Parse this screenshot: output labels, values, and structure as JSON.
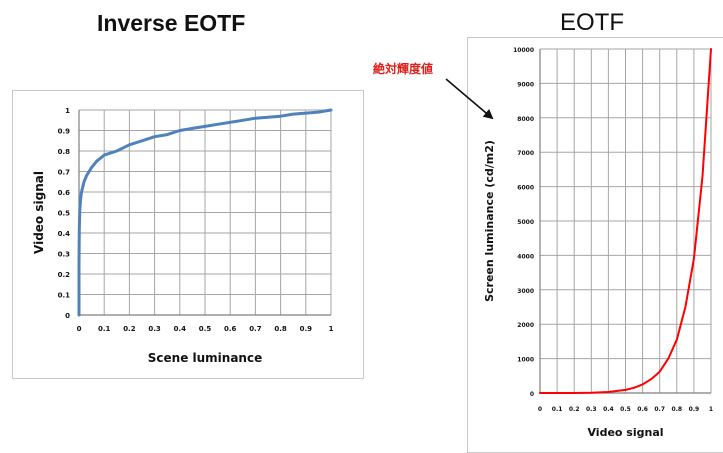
{
  "chart_data": [
    {
      "type": "line",
      "title": "Inverse EOTF",
      "xlabel": "Scene luminance",
      "ylabel": "Video signal",
      "xlim": [
        0,
        1
      ],
      "ylim": [
        0,
        1
      ],
      "grid": true,
      "x_ticks": [
        "0",
        "0.1",
        "0.2",
        "0.3",
        "0.4",
        "0.5",
        "0.6",
        "0.7",
        "0.8",
        "0.9",
        "1"
      ],
      "y_ticks": [
        "0",
        "0.1",
        "0.2",
        "0.3",
        "0.4",
        "0.5",
        "0.6",
        "0.7",
        "0.8",
        "0.9",
        "1"
      ],
      "series": [
        {
          "color": "#4f81bd",
          "x": [
            0,
            0.0001,
            0.001,
            0.003,
            0.006,
            0.01,
            0.02,
            0.03,
            0.05,
            0.07,
            0.1,
            0.15,
            0.2,
            0.25,
            0.3,
            0.35,
            0.4,
            0.45,
            0.5,
            0.55,
            0.6,
            0.65,
            0.7,
            0.75,
            0.8,
            0.85,
            0.9,
            0.95,
            1
          ],
          "y": [
            0,
            0.25,
            0.42,
            0.51,
            0.56,
            0.6,
            0.65,
            0.68,
            0.72,
            0.75,
            0.78,
            0.8,
            0.83,
            0.85,
            0.87,
            0.88,
            0.9,
            0.91,
            0.92,
            0.93,
            0.94,
            0.95,
            0.96,
            0.965,
            0.97,
            0.98,
            0.985,
            0.99,
            1
          ]
        }
      ]
    },
    {
      "type": "line",
      "title": "EOTF",
      "xlabel": "Video signal",
      "ylabel": "Screen luminance (cd/m2)",
      "xlim": [
        0,
        1
      ],
      "ylim": [
        0,
        10000
      ],
      "grid": true,
      "x_ticks": [
        "0",
        "0.1",
        "0.2",
        "0.3",
        "0.4",
        "0.5",
        "0.6",
        "0.7",
        "0.8",
        "0.9",
        "1"
      ],
      "y_ticks": [
        "0",
        "1000",
        "2000",
        "3000",
        "4000",
        "5000",
        "6000",
        "7000",
        "8000",
        "9000",
        "10000"
      ],
      "annotation": "絶対輝度値",
      "series": [
        {
          "color": "#ff0000",
          "x": [
            0,
            0.1,
            0.2,
            0.3,
            0.4,
            0.5,
            0.55,
            0.6,
            0.65,
            0.7,
            0.75,
            0.8,
            0.85,
            0.9,
            0.95,
            1
          ],
          "y": [
            0,
            0,
            0,
            5,
            30,
            90,
            150,
            250,
            400,
            620,
            1000,
            1550,
            2500,
            3900,
            6300,
            10000
          ]
        }
      ]
    }
  ]
}
